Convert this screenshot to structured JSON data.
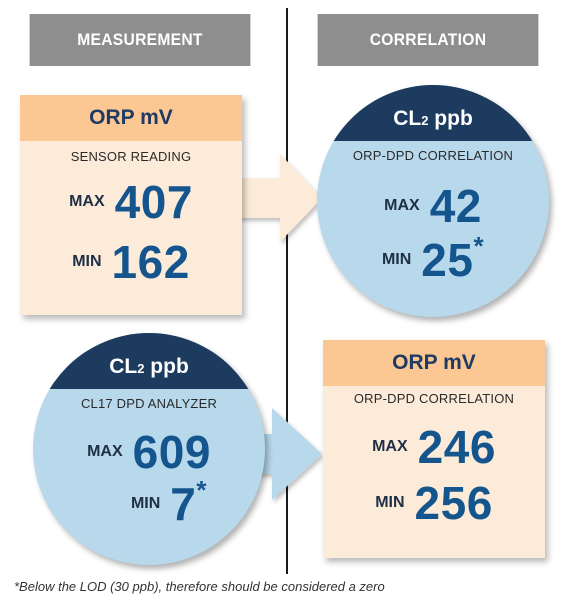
{
  "headers": {
    "measurement": "MEASUREMENT",
    "correlation": "CORRELATION"
  },
  "sensor_box": {
    "title": "ORP mV",
    "subtitle": "SENSOR READING",
    "max_label": "MAX",
    "max_value": "407",
    "min_label": "MIN",
    "min_value": "162"
  },
  "cl2_correlation_circle": {
    "title_main": "CL",
    "title_sub": "2",
    "title_unit": "ppb",
    "subtitle": "ORP-DPD CORRELATION",
    "max_label": "MAX",
    "max_value": "42",
    "min_label": "MIN",
    "min_value": "25",
    "min_mark": "*"
  },
  "analyzer_circle": {
    "title_main": "CL",
    "title_sub": "2",
    "title_unit": "ppb",
    "subtitle": "CL17 DPD ANALYZER",
    "max_label": "MAX",
    "max_value": "609",
    "min_label": "MIN",
    "min_value": "7",
    "min_mark": "*"
  },
  "orp_correlation_box": {
    "title": "ORP mV",
    "subtitle": "ORP-DPD CORRELATION",
    "max_label": "MAX",
    "max_value": "246",
    "min_label": "MIN",
    "min_value": "256"
  },
  "footnote": "*Below the LOD (30 ppb), therefore should be considered a zero",
  "colors": {
    "header_gray": "#8e8e8e",
    "box_fill": "#fdebd9",
    "box_header": "#fbc793",
    "circle_fill": "#b8d8ec",
    "circle_cap": "#1c3b5e",
    "value_blue": "#14558e",
    "arrow_peach": "#fcebd8",
    "arrow_blue": "#b8d8ec"
  }
}
